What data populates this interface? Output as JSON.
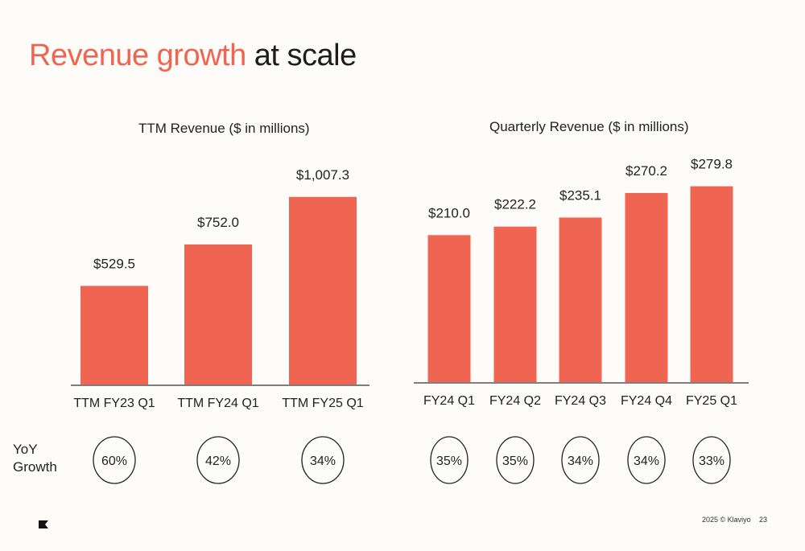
{
  "page": {
    "title_accent": "Revenue growth",
    "title_rest": "at scale",
    "yoy_label_line1": "YoY",
    "yoy_label_line2": "Growth",
    "footer_copyright": "2025 © Klaviyo",
    "footer_page": "23",
    "logo_icon": "klaviyo-flag-icon"
  },
  "colors": {
    "bar": "#f06552",
    "accent_text": "#f06552",
    "axis": "#555555",
    "circle": "#222222"
  },
  "chart_data": [
    {
      "type": "bar",
      "title": "TTM Revenue ($ in millions)",
      "categories": [
        "TTM FY23 Q1",
        "TTM FY24 Q1",
        "TTM FY25 Q1"
      ],
      "values": [
        529.5,
        752.0,
        1007.3
      ],
      "value_labels": [
        "$529.5",
        "$752.0",
        "$1,007.3"
      ],
      "yoy_growth": [
        "60%",
        "42%",
        "34%"
      ],
      "ylim": [
        0,
        1100
      ],
      "grid": false,
      "legend": "none"
    },
    {
      "type": "bar",
      "title": "Quarterly Revenue ($ in millions)",
      "categories": [
        "FY24 Q1",
        "FY24 Q2",
        "FY24 Q3",
        "FY24 Q4",
        "FY25 Q1"
      ],
      "values": [
        210.0,
        222.2,
        235.1,
        270.2,
        279.8
      ],
      "value_labels": [
        "$210.0",
        "$222.2",
        "$235.1",
        "$270.2",
        "$279.8"
      ],
      "yoy_growth": [
        "35%",
        "35%",
        "34%",
        "34%",
        "33%"
      ],
      "ylim": [
        0,
        300
      ],
      "grid": false,
      "legend": "none"
    }
  ]
}
